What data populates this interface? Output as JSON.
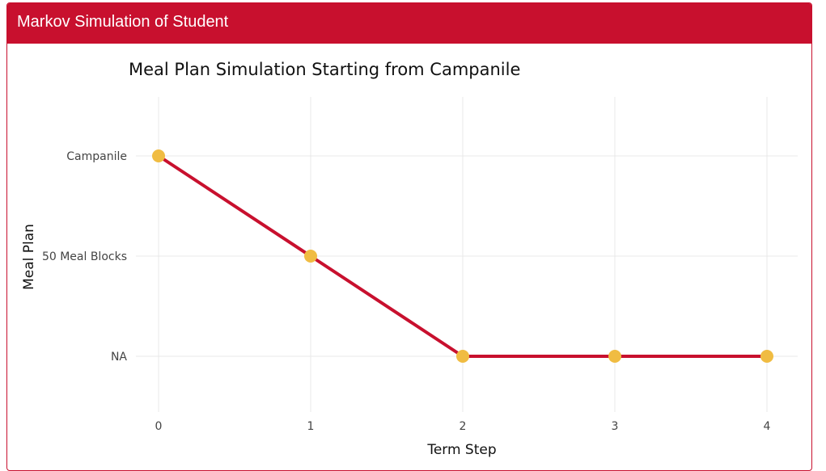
{
  "app": {
    "panel_title": "Markov Simulation of Student"
  },
  "colors": {
    "brand": "#c8102e",
    "line": "#c8102e",
    "marker": "#f0bc42",
    "grid": "#e8e8e8"
  },
  "chart_data": {
    "type": "line",
    "title": "Meal Plan Simulation Starting from Campanile",
    "xlabel": "Term Step",
    "ylabel": "Meal Plan",
    "x_ticks": [
      "0",
      "1",
      "2",
      "3",
      "4"
    ],
    "y_categories": [
      "NA",
      "50 Meal Blocks",
      "Campanile"
    ],
    "xlim": [
      -0.2,
      4.2
    ],
    "grid": true,
    "legend": "none",
    "series": [
      {
        "x": [
          0,
          1,
          2,
          3,
          4
        ],
        "y": [
          "Campanile",
          "50 Meal Blocks",
          "NA",
          "NA",
          "NA"
        ]
      }
    ]
  }
}
